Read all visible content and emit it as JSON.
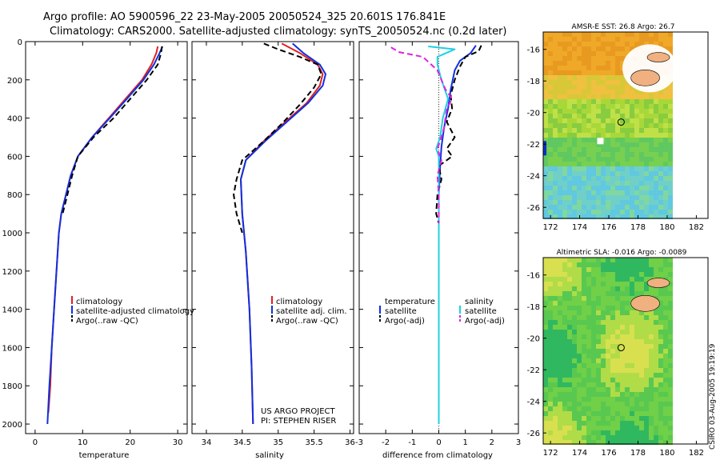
{
  "header": {
    "title_line1": "Argo profile: AO 5900596_22 23-May-2005 20050524_325 20.601S 176.841E",
    "title_line2": "Climatology: CARS2000. Satellite-adjusted climatology: synTS_20050524.nc (0.2d later)"
  },
  "chart_data": [
    {
      "type": "line",
      "id": "temperature",
      "xlabel": "temperature",
      "ylabel": "",
      "xlim": [
        -2,
        32
      ],
      "ylim": [
        2050,
        0
      ],
      "xticks": [
        0,
        10,
        20,
        30
      ],
      "yticks": [
        0,
        200,
        400,
        600,
        800,
        1000,
        1200,
        1400,
        1600,
        1800,
        2000
      ],
      "legend": [
        "climatology",
        "satellite-adjusted climatology",
        "Argo(..raw -QC)"
      ],
      "series": [
        {
          "name": "climatology",
          "color": "#e02020",
          "style": "solid",
          "points": [
            [
              25.8,
              25
            ],
            [
              25.5,
              60
            ],
            [
              24.5,
              120
            ],
            [
              22.5,
              200
            ],
            [
              19,
              300
            ],
            [
              15.5,
              400
            ],
            [
              12,
              500
            ],
            [
              9,
              600
            ],
            [
              7.5,
              700
            ],
            [
              6.5,
              800
            ],
            [
              5.5,
              900
            ],
            [
              5,
              1000
            ],
            [
              4.5,
              1200
            ],
            [
              4,
              1400
            ],
            [
              3.5,
              1600
            ],
            [
              3.2,
              1800
            ],
            [
              2.8,
              1940
            ]
          ]
        },
        {
          "name": "satellite-adjusted climatology",
          "color": "#1030e0",
          "style": "solid",
          "points": [
            [
              26.8,
              25
            ],
            [
              26.2,
              60
            ],
            [
              25,
              120
            ],
            [
              22.8,
              200
            ],
            [
              19.3,
              300
            ],
            [
              15.7,
              400
            ],
            [
              12,
              500
            ],
            [
              9,
              600
            ],
            [
              7.5,
              700
            ],
            [
              6.5,
              800
            ],
            [
              5.5,
              900
            ],
            [
              5,
              1000
            ],
            [
              4.5,
              1200
            ],
            [
              4,
              1400
            ],
            [
              3.5,
              1600
            ],
            [
              3,
              1800
            ],
            [
              2.6,
              2000
            ]
          ]
        },
        {
          "name": "Argo(..raw -QC)",
          "color": "#000000",
          "style": "dashed",
          "points": [
            [
              26.7,
              25
            ],
            [
              26.5,
              60
            ],
            [
              25.8,
              120
            ],
            [
              23.5,
              200
            ],
            [
              20,
              300
            ],
            [
              16.5,
              400
            ],
            [
              12.3,
              500
            ],
            [
              9,
              600
            ],
            [
              7.8,
              700
            ],
            [
              6.8,
              800
            ],
            [
              5.8,
              900
            ]
          ]
        }
      ]
    },
    {
      "type": "line",
      "id": "salinity",
      "xlabel": "salinity",
      "xlim": [
        33.8,
        36.05
      ],
      "ylim": [
        2050,
        0
      ],
      "xticks": [
        34,
        34.5,
        35,
        35.5,
        36
      ],
      "legend": [
        "climatology",
        "satellite adj. clim.",
        "Argo(..raw -QC)"
      ],
      "annotation": [
        "US ARGO PROJECT",
        "PI: STEPHEN RISER"
      ],
      "series": [
        {
          "name": "climatology",
          "color": "#e02020",
          "style": "solid",
          "points": [
            [
              35.05,
              10
            ],
            [
              35.3,
              60
            ],
            [
              35.55,
              120
            ],
            [
              35.62,
              170
            ],
            [
              35.58,
              230
            ],
            [
              35.4,
              320
            ],
            [
              35.1,
              420
            ],
            [
              34.8,
              520
            ],
            [
              34.55,
              620
            ],
            [
              34.48,
              720
            ],
            [
              34.5,
              900
            ],
            [
              34.55,
              1100
            ],
            [
              34.6,
              1400
            ],
            [
              34.63,
              1700
            ],
            [
              34.65,
              2000
            ]
          ]
        },
        {
          "name": "satellite adj. clim.",
          "color": "#1030e0",
          "style": "solid",
          "points": [
            [
              35.2,
              10
            ],
            [
              35.35,
              60
            ],
            [
              35.58,
              120
            ],
            [
              35.66,
              170
            ],
            [
              35.62,
              230
            ],
            [
              35.42,
              320
            ],
            [
              35.12,
              420
            ],
            [
              34.82,
              520
            ],
            [
              34.55,
              620
            ],
            [
              34.48,
              720
            ],
            [
              34.5,
              900
            ],
            [
              34.55,
              1100
            ],
            [
              34.6,
              1400
            ],
            [
              34.63,
              1700
            ],
            [
              34.65,
              2000
            ]
          ]
        },
        {
          "name": "Argo(..raw -QC)",
          "color": "#000000",
          "style": "dashed",
          "points": [
            [
              34.8,
              10
            ],
            [
              35.0,
              40
            ],
            [
              35.3,
              80
            ],
            [
              35.55,
              120
            ],
            [
              35.6,
              170
            ],
            [
              35.5,
              240
            ],
            [
              35.3,
              330
            ],
            [
              35.05,
              430
            ],
            [
              34.8,
              520
            ],
            [
              34.5,
              620
            ],
            [
              34.42,
              720
            ],
            [
              34.38,
              800
            ],
            [
              34.42,
              900
            ],
            [
              34.5,
              1000
            ]
          ]
        }
      ]
    },
    {
      "type": "line",
      "id": "difference",
      "xlabel": "difference from climatology",
      "xlim": [
        -3,
        3
      ],
      "ylim": [
        2050,
        0
      ],
      "xticks": [
        -3,
        -2,
        -1,
        0,
        1,
        2,
        3
      ],
      "legend_left": [
        "temperature",
        "satellite",
        "Argo(-adj)"
      ],
      "legend_right": [
        "salinity",
        "satellite",
        "Argo(-adj)"
      ],
      "series": [
        {
          "name": "temperature satellite",
          "color": "#1030e0",
          "style": "solid",
          "points": [
            [
              1.4,
              20
            ],
            [
              1.2,
              60
            ],
            [
              0.8,
              100
            ],
            [
              0.6,
              150
            ],
            [
              0.45,
              250
            ],
            [
              0.35,
              350
            ],
            [
              0.2,
              450
            ],
            [
              0.1,
              550
            ],
            [
              0.05,
              650
            ],
            [
              0,
              800
            ],
            [
              0,
              1200
            ],
            [
              0,
              2000
            ]
          ]
        },
        {
          "name": "temperature Argo(-adj)",
          "color": "#000000",
          "style": "dashed",
          "points": [
            [
              1.6,
              20
            ],
            [
              1.5,
              50
            ],
            [
              1.0,
              80
            ],
            [
              0.8,
              130
            ],
            [
              0.6,
              200
            ],
            [
              0.45,
              280
            ],
            [
              0.5,
              350
            ],
            [
              0.3,
              420
            ],
            [
              0.6,
              500
            ],
            [
              0.3,
              560
            ],
            [
              0.5,
              600
            ],
            [
              0,
              650
            ],
            [
              0.1,
              720
            ],
            [
              -0.05,
              800
            ],
            [
              -0.1,
              900
            ],
            [
              0,
              950
            ]
          ]
        },
        {
          "name": "salinity satellite",
          "color": "#20d0e0",
          "style": "solid",
          "points": [
            [
              -0.4,
              25
            ],
            [
              0.6,
              40
            ],
            [
              -0.05,
              80
            ],
            [
              -0.05,
              120
            ],
            [
              0.1,
              200
            ],
            [
              0.35,
              300
            ],
            [
              0.15,
              400
            ],
            [
              0.05,
              500
            ],
            [
              -0.1,
              560
            ],
            [
              0,
              600
            ],
            [
              0,
              800
            ],
            [
              0,
              2000
            ]
          ]
        },
        {
          "name": "salinity Argo(-adj)",
          "color": "#e020e0",
          "style": "dashed",
          "points": [
            [
              -1.8,
              30
            ],
            [
              -1.5,
              55
            ],
            [
              -0.6,
              80
            ],
            [
              -0.05,
              150
            ],
            [
              0.25,
              250
            ],
            [
              0.5,
              300
            ],
            [
              0.3,
              350
            ],
            [
              0.2,
              450
            ],
            [
              0.1,
              500
            ],
            [
              -0.05,
              560
            ],
            [
              0.1,
              620
            ],
            [
              -0.05,
              700
            ],
            [
              0,
              800
            ],
            [
              0,
              950
            ]
          ]
        }
      ]
    },
    {
      "type": "heatmap",
      "id": "sst-map",
      "title": "AMSR-E SST: 26.8 Argo: 26.7",
      "xlim": [
        171.5,
        182.8
      ],
      "ylim": [
        -26.7,
        -14.9
      ],
      "xticks": [
        172,
        174,
        176,
        178,
        180,
        182
      ],
      "yticks": [
        -16,
        -18,
        -20,
        -22,
        -24,
        -26
      ],
      "marker": [
        176.841,
        -20.601
      ]
    },
    {
      "type": "heatmap",
      "id": "sla-map",
      "title": "Altimetric SLA: -0.016 Argo: -0.0089",
      "xlim": [
        171.5,
        182.8
      ],
      "ylim": [
        -26.7,
        -14.9
      ],
      "xticks": [
        172,
        174,
        176,
        178,
        180,
        182
      ],
      "yticks": [
        -16,
        -18,
        -20,
        -22,
        -24,
        -26
      ],
      "marker": [
        176.841,
        -20.601
      ]
    }
  ],
  "footer": {
    "stamp": "CSIRO 03-Aug-2005 19:19:19"
  },
  "colors": {
    "red": "#e02020",
    "blue": "#1030e0",
    "cyan": "#20d0e0",
    "magenta": "#e020e0",
    "black": "#000000"
  }
}
